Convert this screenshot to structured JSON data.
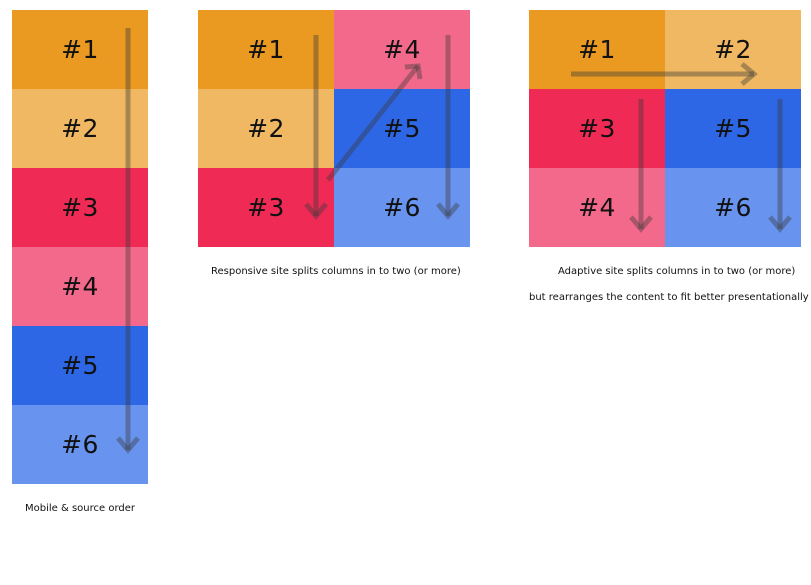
{
  "colors": {
    "orange": "#EA9A20",
    "light_orange": "#F0B862",
    "red": "#EE2A55",
    "pink": "#F3698B",
    "blue": "#2E67E5",
    "light_blue": "#6893EF",
    "arrow": "#3a3a3a"
  },
  "mobile": {
    "blocks": [
      {
        "label": "#1",
        "color": "orange"
      },
      {
        "label": "#2",
        "color": "light_orange"
      },
      {
        "label": "#3",
        "color": "red"
      },
      {
        "label": "#4",
        "color": "pink"
      },
      {
        "label": "#5",
        "color": "blue"
      },
      {
        "label": "#6",
        "color": "light_blue"
      }
    ],
    "caption": "Mobile & source order"
  },
  "responsive": {
    "blocks": [
      {
        "label": "#1",
        "color": "orange"
      },
      {
        "label": "#4",
        "color": "pink"
      },
      {
        "label": "#2",
        "color": "light_orange"
      },
      {
        "label": "#5",
        "color": "blue"
      },
      {
        "label": "#3",
        "color": "red"
      },
      {
        "label": "#6",
        "color": "light_blue"
      }
    ],
    "caption": "Responsive site splits columns in to two (or more)"
  },
  "adaptive": {
    "blocks": [
      {
        "label": "#1",
        "color": "orange"
      },
      {
        "label": "#2",
        "color": "light_orange"
      },
      {
        "label": "#3",
        "color": "red"
      },
      {
        "label": "#5",
        "color": "blue"
      },
      {
        "label": "#4",
        "color": "pink"
      },
      {
        "label": "#6",
        "color": "light_blue"
      }
    ],
    "caption_line1": "Adaptive site splits columns in to two (or more)",
    "caption_line2": "but rearranges the content to fit better presentationally"
  }
}
